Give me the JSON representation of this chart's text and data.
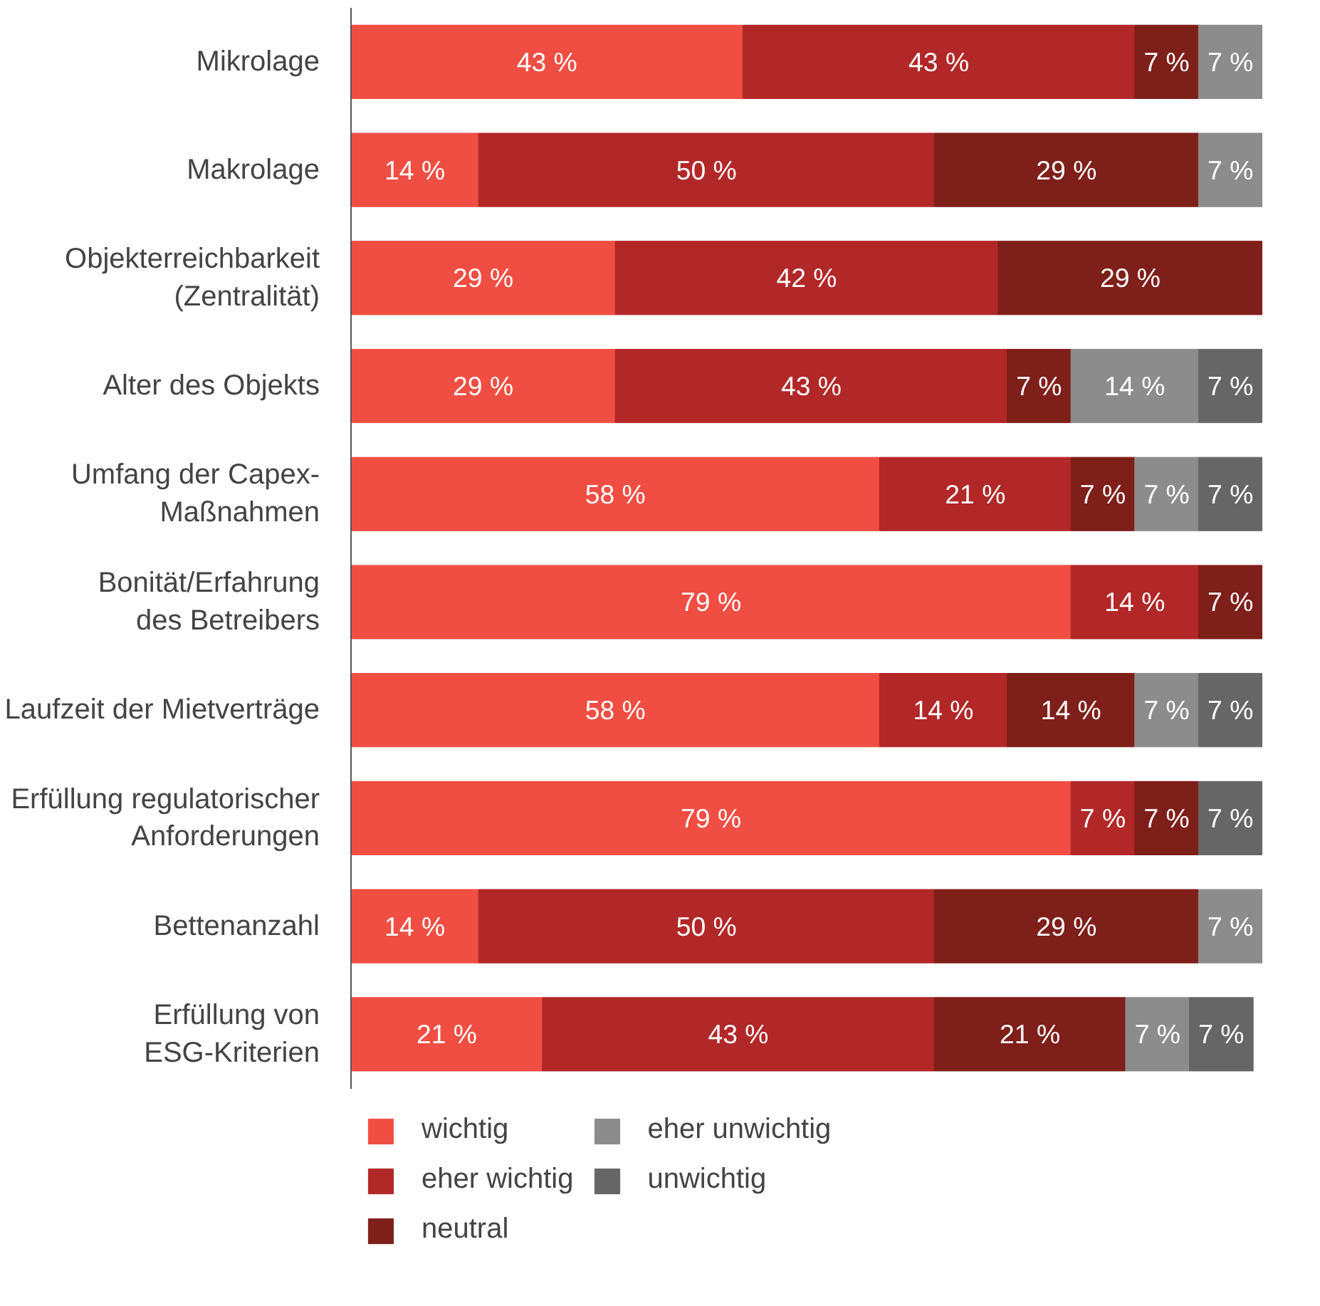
{
  "chart_data": {
    "type": "bar",
    "orientation": "horizontal",
    "stacked": true,
    "data_labels": true,
    "tick_labels": "y",
    "xlim": [
      0,
      100
    ],
    "legend": "bottom",
    "grid": false,
    "categories": [
      "Mikrolage",
      "Makrolage",
      "Objekterreichbarkeit\n(Zentralität)",
      "Alter des Objekts",
      "Umfang der Capex-\nMaßnahmen",
      "Bonität/Erfahrung\ndes Betreibers",
      "Laufzeit der Mietverträge",
      "Erfüllung regulatorischer\nAnforderungen",
      "Bettenanzahl",
      "Erfüllung von\nESG-Kriterien"
    ],
    "series": [
      {
        "name": "wichtig",
        "color": "#f04e43",
        "values": [
          43,
          14,
          29,
          29,
          58,
          79,
          58,
          79,
          14,
          21
        ],
        "value_labels": [
          "43 %",
          "14 %",
          "29 %",
          "29 %",
          "58 %",
          "79 %",
          "58 %",
          "79 %",
          "14 %",
          "21 %"
        ]
      },
      {
        "name": "eher wichtig",
        "color": "#b22727",
        "values": [
          43,
          50,
          42,
          43,
          21,
          14,
          14,
          7,
          50,
          43
        ],
        "value_labels": [
          "43 %",
          "50 %",
          "42 %",
          "43 %",
          "21 %",
          "14 %",
          "14 %",
          "7 %",
          "50 %",
          "43 %"
        ]
      },
      {
        "name": "neutral",
        "color": "#7f1f1a",
        "values": [
          7,
          29,
          29,
          7,
          7,
          7,
          14,
          7,
          29,
          21
        ],
        "value_labels": [
          "7 %",
          "29 %",
          "29 %",
          "7 %",
          "7 %",
          "7 %",
          "14 %",
          "7 %",
          "29 %",
          "21 %"
        ]
      },
      {
        "name": "eher unwichtig",
        "color": "#8c8c8c",
        "values": [
          7,
          7,
          null,
          14,
          7,
          null,
          7,
          null,
          7,
          7
        ],
        "value_labels": [
          "7 %",
          "7 %",
          null,
          "14 %",
          "7 %",
          null,
          "7 %",
          null,
          "7 %",
          "7 %"
        ]
      },
      {
        "name": "unwichtig",
        "color": "#666666",
        "values": [
          null,
          null,
          null,
          7,
          7,
          null,
          7,
          7,
          null,
          7
        ],
        "value_labels": [
          null,
          null,
          null,
          "7 %",
          "7 %",
          null,
          "7 %",
          "7 %",
          null,
          "7 %"
        ]
      }
    ]
  }
}
